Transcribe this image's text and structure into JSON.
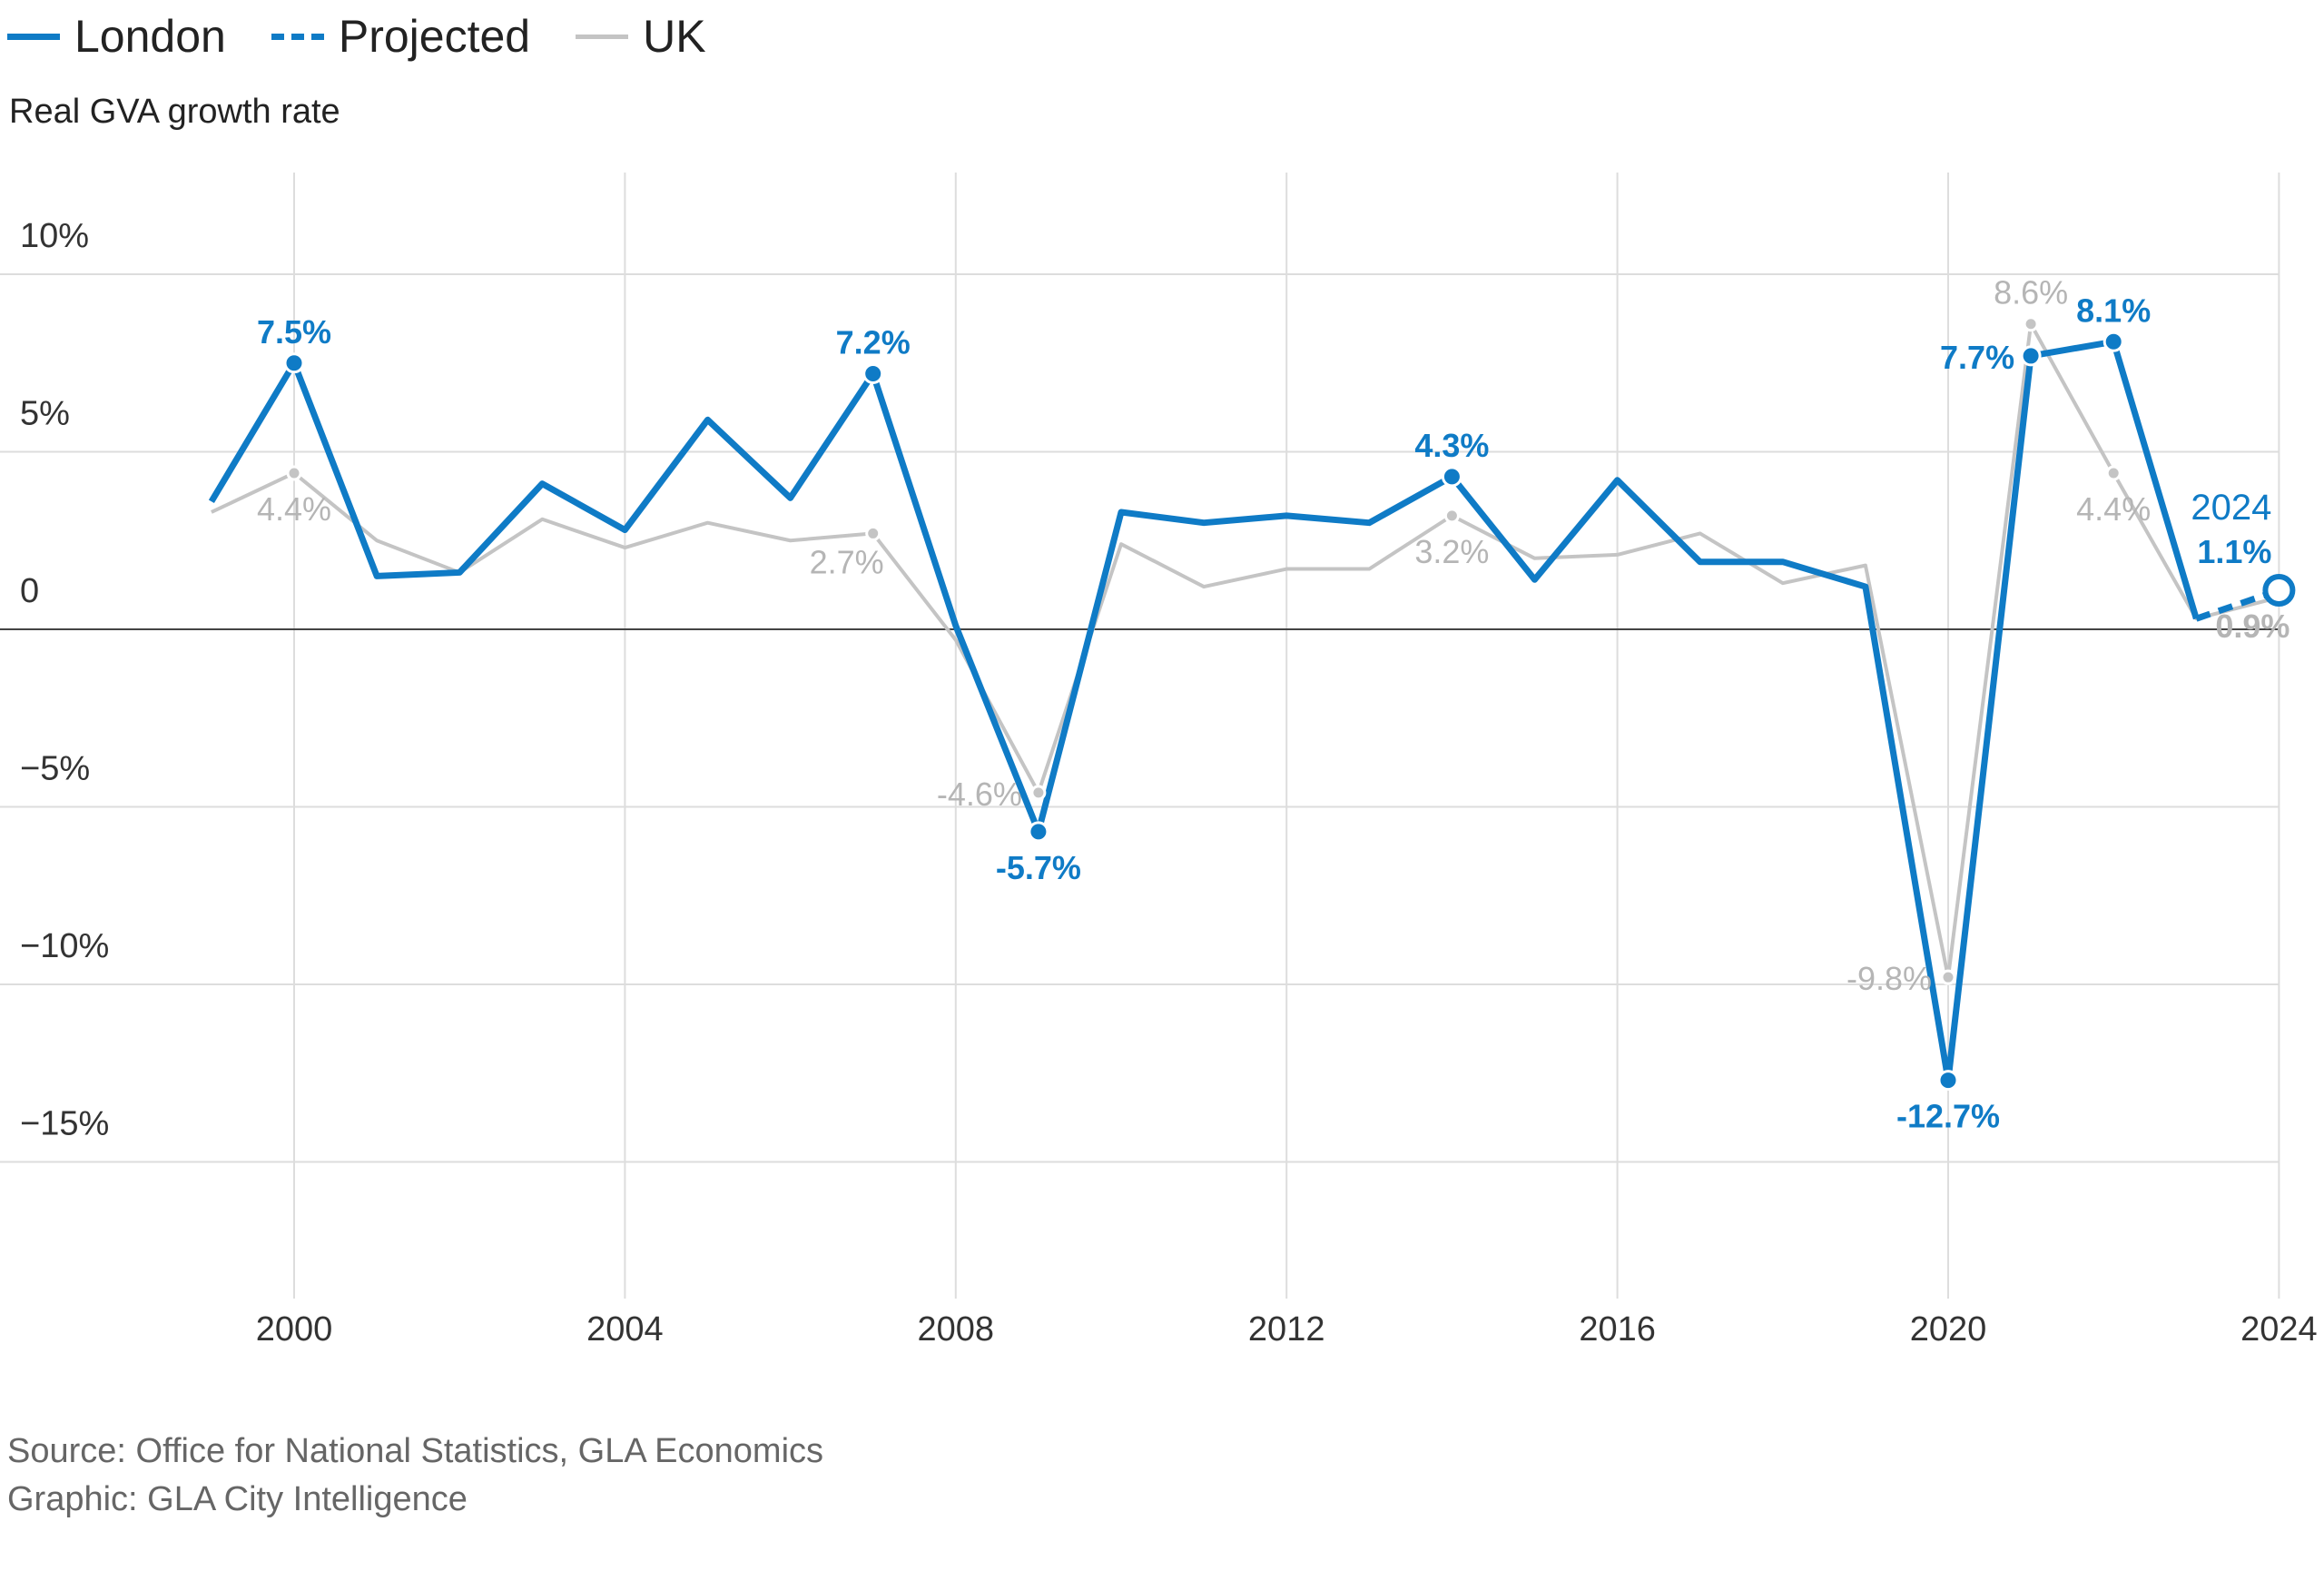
{
  "legend": [
    {
      "label": "London",
      "style": "solid",
      "color": "#0f7bc6"
    },
    {
      "label": "Projected",
      "style": "dashed",
      "color": "#0f7bc6"
    },
    {
      "label": "UK",
      "style": "solid",
      "color": "#c4c4c4"
    }
  ],
  "subtitle": "Real GVA growth rate",
  "source": {
    "line1": "Source: Office for National Statistics, GLA Economics",
    "line2": "Graphic: GLA City Intelligence"
  },
  "chart_data": {
    "type": "line",
    "title": "",
    "xlabel": "",
    "ylabel": "Real GVA growth rate",
    "xlim": [
      1997.5,
      2024
    ],
    "ylim": [
      -19,
      12
    ],
    "grid": true,
    "legend_position": "top-left",
    "x_ticks": [
      2000,
      2004,
      2008,
      2012,
      2016,
      2020,
      2024
    ],
    "x_tick_labels": [
      "2000",
      "2004",
      "2008",
      "2012",
      "2016",
      "2020",
      "2024"
    ],
    "y_ticks": [
      10,
      5,
      0,
      -5,
      -10,
      -15
    ],
    "y_tick_labels": [
      "10%",
      "5%",
      "0",
      "−5%",
      "−10%",
      "−15%"
    ],
    "colors": {
      "london": "#0f7bc6",
      "uk": "#c4c4c4",
      "zero_line": "#444444",
      "grid": "#dddddd"
    },
    "series": [
      {
        "name": "London",
        "x": [
          1999,
          2000,
          2001,
          2002,
          2003,
          2004,
          2005,
          2006,
          2007,
          2008,
          2009,
          2010,
          2011,
          2012,
          2013,
          2014,
          2015,
          2016,
          2017,
          2018,
          2019,
          2020,
          2021,
          2022,
          2023
        ],
        "values": [
          3.6,
          7.5,
          1.5,
          1.6,
          4.1,
          2.8,
          5.9,
          3.7,
          7.2,
          0.1,
          -5.7,
          3.3,
          3.0,
          3.2,
          3.0,
          4.3,
          1.4,
          4.2,
          1.9,
          1.9,
          1.2,
          -12.7,
          7.7,
          8.1,
          0.3
        ]
      },
      {
        "name": "Projected",
        "x": [
          2023,
          2024
        ],
        "values": [
          0.3,
          1.1
        ]
      },
      {
        "name": "UK",
        "x": [
          1999,
          2000,
          2001,
          2002,
          2003,
          2004,
          2005,
          2006,
          2007,
          2008,
          2009,
          2010,
          2011,
          2012,
          2013,
          2014,
          2015,
          2016,
          2017,
          2018,
          2019,
          2020,
          2021,
          2022,
          2023,
          2024
        ],
        "values": [
          3.3,
          4.4,
          2.5,
          1.6,
          3.1,
          2.3,
          3.0,
          2.5,
          2.7,
          -0.3,
          -4.6,
          2.4,
          1.2,
          1.7,
          1.7,
          3.2,
          2.0,
          2.1,
          2.7,
          1.3,
          1.8,
          -9.8,
          8.6,
          4.4,
          0.3,
          0.9
        ]
      }
    ],
    "annotations": [
      {
        "series": "London",
        "x": 2000,
        "y": 7.5,
        "label": "7.5%",
        "marker": "dot",
        "pos": "above"
      },
      {
        "series": "London",
        "x": 2007,
        "y": 7.2,
        "label": "7.2%",
        "marker": "dot",
        "pos": "above"
      },
      {
        "series": "London",
        "x": 2009,
        "y": -5.7,
        "label": "-5.7%",
        "marker": "dot",
        "pos": "below"
      },
      {
        "series": "London",
        "x": 2014,
        "y": 4.3,
        "label": "4.3%",
        "marker": "dot",
        "pos": "above"
      },
      {
        "series": "London",
        "x": 2020,
        "y": -12.7,
        "label": "-12.7%",
        "marker": "dot",
        "pos": "below"
      },
      {
        "series": "London",
        "x": 2021,
        "y": 7.7,
        "label": "7.7%",
        "marker": "dot",
        "pos": "left"
      },
      {
        "series": "London",
        "x": 2022,
        "y": 8.1,
        "label": "8.1%",
        "marker": "dot",
        "pos": "above"
      },
      {
        "series": "UK",
        "x": 2000,
        "y": 4.4,
        "label": "4.4%",
        "marker": "dot",
        "pos": "below"
      },
      {
        "series": "UK",
        "x": 2007,
        "y": 2.7,
        "label": "2.7%",
        "marker": "dot",
        "pos": "below-left"
      },
      {
        "series": "UK",
        "x": 2009,
        "y": -4.6,
        "label": "-4.6%",
        "marker": "dot",
        "pos": "left"
      },
      {
        "series": "UK",
        "x": 2014,
        "y": 3.2,
        "label": "3.2%",
        "marker": "dot",
        "pos": "below"
      },
      {
        "series": "UK",
        "x": 2020,
        "y": -9.8,
        "label": "-9.8%",
        "marker": "dot",
        "pos": "left"
      },
      {
        "series": "UK",
        "x": 2021,
        "y": 8.6,
        "label": "8.6%",
        "marker": "dot",
        "pos": "above"
      },
      {
        "series": "UK",
        "x": 2022,
        "y": 4.4,
        "label": "4.4%",
        "marker": "dot",
        "pos": "below"
      },
      {
        "series": "UK",
        "x": 2024,
        "y": 0.9,
        "label": "0.9%",
        "marker": "dot",
        "pos": "below-left"
      },
      {
        "series": "Projected",
        "x": 2024,
        "y": 1.1,
        "label": "1.1%",
        "year_label": "2024",
        "marker": "ring",
        "pos": "above-left"
      }
    ]
  }
}
